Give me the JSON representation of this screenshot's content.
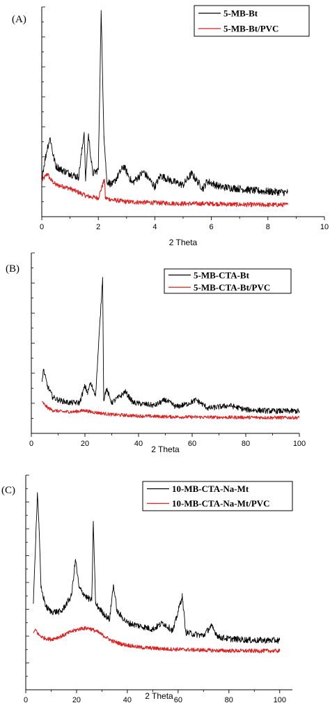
{
  "chart_data": [
    {
      "type": "line",
      "panel_label": "(A)",
      "xlabel": "2 Theta",
      "ylabel": "",
      "xlim": [
        0,
        10
      ],
      "x_ticks": [
        "0",
        "2",
        "4",
        "6",
        "8",
        "10"
      ],
      "y_tick_labels": "none",
      "legend_position": "top-right",
      "series": [
        {
          "name": "5-MB-Bt",
          "color": "#000000",
          "x": [
            0.0,
            0.1,
            0.2,
            0.3,
            0.4,
            0.5,
            0.7,
            1.0,
            1.3,
            1.5,
            1.55,
            1.65,
            1.8,
            2.0,
            2.1,
            2.2,
            2.3,
            2.5,
            2.9,
            3.2,
            3.6,
            4.0,
            4.2,
            4.6,
            5.0,
            5.3,
            5.7,
            5.85,
            6.3,
            7.0,
            7.5,
            8.0,
            8.7
          ],
          "y": [
            0.12,
            0.2,
            0.28,
            0.33,
            0.24,
            0.18,
            0.16,
            0.14,
            0.12,
            0.36,
            0.1,
            0.35,
            0.14,
            0.16,
            1.0,
            0.34,
            0.1,
            0.08,
            0.18,
            0.09,
            0.15,
            0.07,
            0.13,
            0.1,
            0.08,
            0.14,
            0.06,
            0.1,
            0.07,
            0.06,
            0.05,
            0.045,
            0.04
          ]
        },
        {
          "name": "5-MB-Bt/PVC",
          "color": "#e01f1f",
          "x": [
            0.0,
            0.1,
            0.2,
            0.3,
            0.5,
            0.8,
            1.0,
            1.3,
            1.6,
            2.0,
            2.22,
            2.25,
            2.5,
            3.0,
            4.0,
            5.0,
            6.0,
            7.0,
            8.0,
            8.7
          ],
          "y": [
            0.13,
            0.15,
            0.17,
            0.14,
            0.11,
            0.1,
            0.09,
            0.07,
            0.05,
            0.04,
            0.14,
            0.04,
            0.03,
            0.02,
            0.015,
            0.01,
            0.01,
            0.005,
            0.004,
            0.004
          ]
        }
      ]
    },
    {
      "type": "line",
      "panel_label": "(B)",
      "xlabel": "2 Theta",
      "ylabel": "",
      "xlim": [
        0,
        100
      ],
      "x_ticks": [
        "0",
        "20",
        "40",
        "60",
        "80",
        "100"
      ],
      "y_tick_labels": "none",
      "legend_position": "top-right",
      "series": [
        {
          "name": "5-MB-CTA-Bt",
          "color": "#000000",
          "x": [
            4,
            4.5,
            5,
            6,
            8,
            10,
            14,
            18,
            20,
            21,
            22,
            24,
            26.6,
            27,
            28,
            30,
            34,
            35,
            38,
            42,
            46,
            50,
            54,
            58,
            61.5,
            66,
            70,
            74,
            80,
            90,
            100
          ],
          "y": [
            0.25,
            0.34,
            0.3,
            0.22,
            0.14,
            0.12,
            0.1,
            0.1,
            0.22,
            0.17,
            0.24,
            0.16,
            1.0,
            0.12,
            0.2,
            0.1,
            0.16,
            0.18,
            0.1,
            0.09,
            0.08,
            0.12,
            0.07,
            0.09,
            0.12,
            0.06,
            0.07,
            0.08,
            0.05,
            0.04,
            0.04
          ]
        },
        {
          "name": "5-MB-CTA-Bt/PVC",
          "color": "#e01f1f",
          "x": [
            4,
            5,
            6,
            8,
            12,
            16,
            20,
            22,
            26,
            30,
            40,
            50,
            60,
            70,
            80,
            90,
            100
          ],
          "y": [
            0.12,
            0.1,
            0.08,
            0.06,
            0.05,
            0.05,
            0.06,
            0.05,
            0.04,
            0.03,
            0.02,
            0.015,
            0.012,
            0.01,
            0.01,
            0.008,
            0.008
          ]
        }
      ]
    },
    {
      "type": "line",
      "panel_label": "(C)",
      "xlabel": "2 Theta",
      "ylabel": "",
      "xlim": [
        0,
        105
      ],
      "x_ticks": [
        "0",
        "20",
        "40",
        "60",
        "80",
        "100"
      ],
      "y_tick_labels": "none",
      "legend_position": "top-center",
      "series": [
        {
          "name": "10-MB-CTA-Na-Mt",
          "color": "#000000",
          "x": [
            3,
            4,
            4.6,
            5.2,
            6,
            8,
            10,
            14,
            18,
            19.6,
            21,
            24,
            26,
            26.6,
            27.5,
            30,
            33,
            34.5,
            36,
            40,
            45,
            50,
            54,
            58,
            61.6,
            63,
            66,
            70,
            73,
            76,
            80,
            90,
            100
          ],
          "y": [
            0.3,
            0.75,
            1.0,
            0.8,
            0.4,
            0.28,
            0.25,
            0.25,
            0.35,
            0.58,
            0.4,
            0.34,
            0.32,
            0.82,
            0.3,
            0.25,
            0.2,
            0.42,
            0.25,
            0.18,
            0.16,
            0.14,
            0.18,
            0.13,
            0.35,
            0.12,
            0.11,
            0.1,
            0.16,
            0.09,
            0.08,
            0.07,
            0.07
          ]
        },
        {
          "name": "10-MB-CTA-Na-Mt/PVC",
          "color": "#e01f1f",
          "x": [
            3,
            4,
            5,
            7,
            10,
            14,
            18,
            22,
            25,
            28,
            31,
            34,
            38,
            45,
            55,
            65,
            75,
            85,
            100
          ],
          "y": [
            0.12,
            0.14,
            0.11,
            0.09,
            0.08,
            0.1,
            0.13,
            0.15,
            0.15,
            0.13,
            0.1,
            0.07,
            0.05,
            0.03,
            0.02,
            0.015,
            0.01,
            0.008,
            0.008
          ]
        }
      ]
    }
  ]
}
